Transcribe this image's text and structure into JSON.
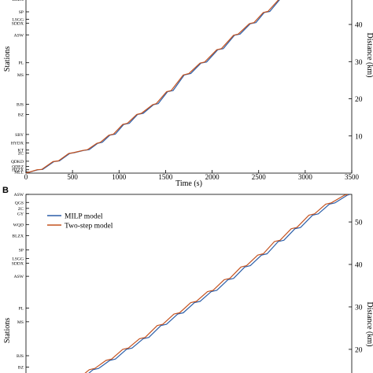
{
  "chart_data": [
    {
      "panel": "",
      "type": "line",
      "xlabel": "Time (s)",
      "ylabel_left": "Stations",
      "ylabel_right": "Distance (km)",
      "xlim": [
        0,
        3500
      ],
      "ylim": [
        0,
        47
      ],
      "xticks": [
        0,
        500,
        1000,
        1500,
        2000,
        2500,
        3000,
        3500
      ],
      "yticks_right": [
        10,
        20,
        30,
        40
      ],
      "stations": [
        {
          "name": "MLL",
          "km": 0.3
        },
        {
          "name": "HZZX",
          "km": 0.9
        },
        {
          "name": "QDEZ",
          "km": 1.8
        },
        {
          "name": "QDKD",
          "km": 3.2
        },
        {
          "name": "ZC",
          "km": 5.4
        },
        {
          "name": "KT",
          "km": 6.2
        },
        {
          "name": "HYDX",
          "km": 8.1
        },
        {
          "name": "SBY",
          "km": 10.4
        },
        {
          "name": "BZ",
          "km": 15.8
        },
        {
          "name": "BJS",
          "km": 18.5
        },
        {
          "name": "MS",
          "km": 26.5
        },
        {
          "name": "PL",
          "km": 29.7
        },
        {
          "name": "ASW",
          "km": 37.2
        },
        {
          "name": "SDDX",
          "km": 40.3
        },
        {
          "name": "LSGG",
          "km": 41.4
        },
        {
          "name": "SP",
          "km": 43.4
        },
        {
          "name": "BLZX",
          "km": 46.8
        }
      ],
      "series": [
        {
          "name": "MILP model",
          "color": "#2b5ea8",
          "x": [
            0,
            130,
            180,
            300,
            360,
            470,
            520,
            620,
            680,
            770,
            820,
            900,
            960,
            1050,
            1110,
            1200,
            1260,
            1370,
            1420,
            1520,
            1580,
            1700,
            1770,
            1880,
            1940,
            2060,
            2120,
            2240,
            2300,
            2410,
            2470,
            2560,
            2620,
            2730
          ],
          "y": [
            0,
            0.9,
            1.0,
            3.1,
            3.3,
            5.3,
            5.5,
            6.1,
            6.3,
            8.0,
            8.3,
            10.2,
            10.5,
            13.1,
            13.4,
            15.8,
            16.1,
            18.4,
            18.7,
            21.9,
            22.2,
            26.4,
            26.8,
            29.6,
            29.9,
            33.2,
            33.5,
            37.1,
            37.4,
            40.2,
            40.5,
            43.2,
            43.5,
            46.8
          ]
        },
        {
          "name": "Two-step model",
          "color": "#c4521f",
          "x": [
            0,
            120,
            170,
            290,
            350,
            460,
            510,
            610,
            660,
            760,
            800,
            890,
            940,
            1040,
            1090,
            1190,
            1240,
            1360,
            1400,
            1510,
            1560,
            1690,
            1750,
            1870,
            1920,
            2050,
            2100,
            2230,
            2280,
            2400,
            2450,
            2550,
            2600,
            2720
          ],
          "y": [
            0,
            0.9,
            1.0,
            3.1,
            3.3,
            5.3,
            5.5,
            6.1,
            6.3,
            8.0,
            8.3,
            10.2,
            10.5,
            13.1,
            13.4,
            15.8,
            16.1,
            18.4,
            18.7,
            21.9,
            22.2,
            26.4,
            26.8,
            29.6,
            29.9,
            33.2,
            33.5,
            37.1,
            37.4,
            40.2,
            40.5,
            43.2,
            43.5,
            46.8
          ]
        }
      ]
    },
    {
      "panel": "B",
      "type": "line",
      "xlabel": "",
      "ylabel_left": "Stations",
      "ylabel_right": "Distance (km)",
      "xlim": [
        0,
        3500
      ],
      "ylim": [
        13.5,
        56.5
      ],
      "yticks_right": [
        20,
        30,
        40,
        50
      ],
      "stations": [
        {
          "name": "BZ",
          "km": 15.8
        },
        {
          "name": "BJS",
          "km": 18.5
        },
        {
          "name": "MS",
          "km": 26.5
        },
        {
          "name": "PL",
          "km": 29.7
        },
        {
          "name": "ASW",
          "km": 37.2
        },
        {
          "name": "SDDX",
          "km": 40.3
        },
        {
          "name": "LSGG",
          "km": 41.4
        },
        {
          "name": "SP",
          "km": 43.4
        },
        {
          "name": "BLZX",
          "km": 46.8
        },
        {
          "name": "WQD",
          "km": 49.4
        },
        {
          "name": "GY",
          "km": 52.0
        },
        {
          "name": "ZC",
          "km": 53.2
        },
        {
          "name": "QGS",
          "km": 54.6
        },
        {
          "name": "ASW",
          "km": 56.5
        }
      ],
      "legend": {
        "position": "top-left",
        "entries": [
          "MILP model",
          "Two-step model"
        ]
      },
      "series": [
        {
          "name": "MILP model",
          "color": "#2b5ea8",
          "x": [
            600,
            720,
            780,
            900,
            960,
            1080,
            1140,
            1260,
            1320,
            1450,
            1510,
            1630,
            1690,
            1810,
            1870,
            1990,
            2050,
            2170,
            2230,
            2350,
            2410,
            2530,
            2590,
            2710,
            2770,
            2890,
            2950,
            3080,
            3140,
            3260,
            3320,
            3450,
            3480
          ],
          "y": [
            13.0,
            15.2,
            15.5,
            17.4,
            17.7,
            20.0,
            20.3,
            22.5,
            22.8,
            25.6,
            25.9,
            28.3,
            28.6,
            31.0,
            31.3,
            33.6,
            33.9,
            36.4,
            36.7,
            39.4,
            39.7,
            42.2,
            42.5,
            45.4,
            45.7,
            48.4,
            48.7,
            51.6,
            51.9,
            54.2,
            54.5,
            56.3,
            56.5
          ]
        },
        {
          "name": "Two-step model",
          "color": "#c4521f",
          "x": [
            560,
            680,
            740,
            860,
            920,
            1040,
            1100,
            1220,
            1280,
            1410,
            1470,
            1590,
            1650,
            1770,
            1830,
            1950,
            2010,
            2130,
            2190,
            2310,
            2370,
            2490,
            2550,
            2670,
            2730,
            2850,
            2910,
            3040,
            3100,
            3220,
            3280,
            3420,
            3460
          ],
          "y": [
            13.0,
            15.2,
            15.5,
            17.4,
            17.7,
            20.0,
            20.3,
            22.5,
            22.8,
            25.6,
            25.9,
            28.3,
            28.6,
            31.0,
            31.3,
            33.6,
            33.9,
            36.4,
            36.7,
            39.4,
            39.7,
            42.2,
            42.5,
            45.4,
            45.7,
            48.4,
            48.7,
            51.6,
            51.9,
            54.2,
            54.5,
            56.3,
            56.5
          ]
        }
      ]
    }
  ]
}
